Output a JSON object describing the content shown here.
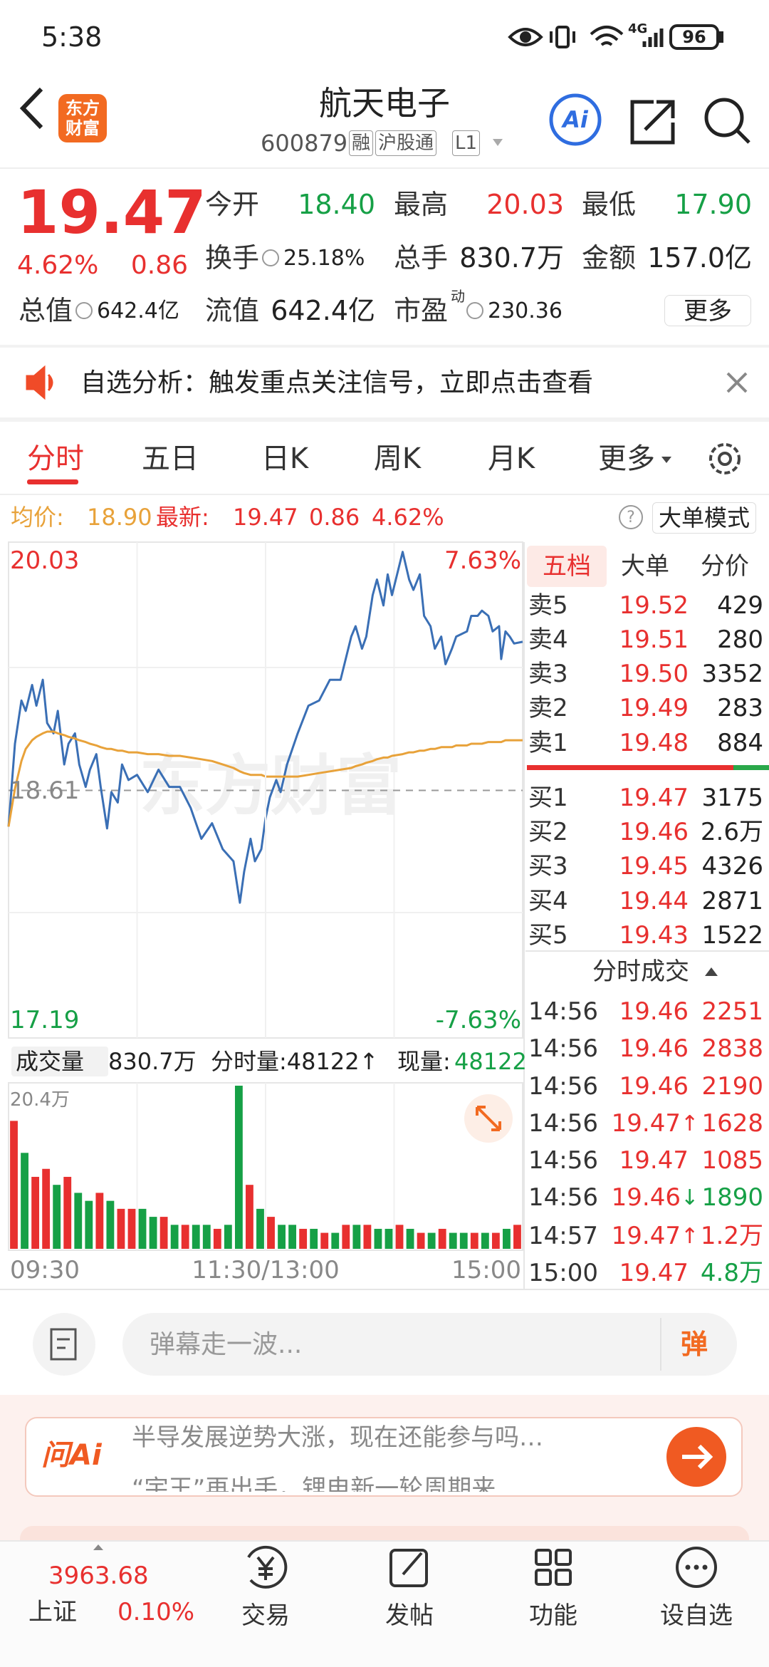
{
  "status_bar": {
    "time": "5:38",
    "network": "4G",
    "battery": "96"
  },
  "header": {
    "logo": [
      "东方",
      "财富"
    ],
    "title": "航天电子",
    "code": "600879",
    "tags": [
      "融",
      "沪股通",
      "L1"
    ],
    "ai": "Ai"
  },
  "quote": {
    "price": "19.47",
    "change_pct": "4.62%",
    "change": "0.86",
    "stats": [
      [
        {
          "label": "今开",
          "value": "18.40",
          "color": "#16a046"
        },
        {
          "label": "最高",
          "value": "20.03",
          "color": "#e8302f"
        },
        {
          "label": "最低",
          "value": "17.90",
          "color": "#16a046"
        }
      ],
      [
        {
          "label": "换手",
          "value": "25.18%",
          "icon": true
        },
        {
          "label": "总手",
          "value": "830.7万"
        },
        {
          "label": "金额",
          "value": "157.0亿"
        }
      ],
      [
        {
          "label": "总值",
          "value": "642.4亿",
          "icon": true
        },
        {
          "label": "流值",
          "value": "642.4亿"
        },
        {
          "label": "市盈",
          "sup": "动",
          "value": "230.36",
          "icon": true
        }
      ]
    ],
    "more": "更多"
  },
  "alert": {
    "text": "自选分析：触发重点关注信号，立即点击查看"
  },
  "tabs": {
    "items": [
      "分时",
      "五日",
      "日K",
      "周K",
      "月K",
      "更多"
    ],
    "active": 0
  },
  "info": {
    "avg_label": "均价:",
    "avg": "18.90",
    "last_label": "最新:",
    "last": "19.47",
    "change": "0.86",
    "change_pct": "4.62%",
    "help": "?",
    "mode": "大单模式"
  },
  "watermark": "东方财富",
  "volume_header": {
    "label": "成交量",
    "total": "830.7万",
    "period": "分时量:48122↑",
    "now_label": "现量:",
    "now": "48122"
  },
  "order_book": {
    "tabs": [
      "五档",
      "大单",
      "分价"
    ],
    "asks": [
      [
        "卖5",
        "19.52",
        "429"
      ],
      [
        "卖4",
        "19.51",
        "280"
      ],
      [
        "卖3",
        "19.50",
        "3352"
      ],
      [
        "卖2",
        "19.49",
        "283"
      ],
      [
        "卖1",
        "19.48",
        "884"
      ]
    ],
    "bids": [
      [
        "买1",
        "19.47",
        "3175"
      ],
      [
        "买2",
        "19.46",
        "2.6万"
      ],
      [
        "买3",
        "19.45",
        "4326"
      ],
      [
        "买4",
        "19.44",
        "2871"
      ],
      [
        "买5",
        "19.43",
        "1522"
      ]
    ]
  },
  "trades": {
    "title": "分时成交",
    "rows": [
      {
        "time": "14:56",
        "price": "19.46",
        "volume": "2251",
        "color": "#e8302f"
      },
      {
        "time": "14:56",
        "price": "19.46",
        "volume": "2838",
        "color": "#e8302f"
      },
      {
        "time": "14:56",
        "price": "19.46",
        "volume": "2190",
        "color": "#e8302f"
      },
      {
        "time": "14:56",
        "price": "19.47",
        "dir": "↑",
        "volume": "1628",
        "color": "#e8302f"
      },
      {
        "time": "14:56",
        "price": "19.47",
        "volume": "1085",
        "color": "#e8302f"
      },
      {
        "time": "14:56",
        "price": "19.46",
        "dir": "↓",
        "volume": "1890",
        "color": "#16a046"
      },
      {
        "time": "14:57",
        "price": "19.47",
        "dir": "↑",
        "volume": "1.2万",
        "color": "#e8302f"
      },
      {
        "time": "15:00",
        "price": "19.47",
        "volume": "4.8万",
        "color": "#16a046"
      }
    ]
  },
  "comment": {
    "placeholder": "弹幕走一波...",
    "button": "弹"
  },
  "ad": {
    "brand": "问Ai",
    "lines": [
      "半导发展逆势大涨，现在还能参与吗…",
      "“宇王”再出手，锂电新一轮周期来"
    ]
  },
  "bottom_nav": {
    "index": {
      "value": "3963.68",
      "name": "上证",
      "change": "0.10%"
    },
    "items": [
      "交易",
      "发帖",
      "功能",
      "设自选"
    ]
  },
  "chart_data": [
    {
      "type": "line",
      "x": [
        0,
        3,
        6,
        8,
        11,
        13,
        16,
        18,
        21,
        23,
        26,
        28,
        31,
        33,
        36,
        38,
        41,
        43,
        46,
        48,
        51,
        53,
        56,
        60,
        65,
        70,
        75,
        80,
        85,
        90,
        95,
        100,
        105,
        108,
        110,
        113,
        115,
        118,
        120,
        122,
        125,
        127,
        130,
        135,
        140,
        145,
        150,
        155,
        160,
        162,
        165,
        167,
        170,
        172,
        175,
        177,
        179,
        184,
        187,
        189,
        192,
        194,
        197,
        199,
        202,
        204,
        207,
        209,
        214,
        216,
        219,
        221,
        224,
        226,
        229,
        230,
        232,
        234,
        236,
        240
      ],
      "xlim": [
        0,
        240
      ],
      "ylim": [
        17.19,
        20.03
      ],
      "yticks": [
        20.03,
        18.61,
        17.19
      ],
      "y2lim": [
        -7.63,
        7.63
      ],
      "y2ticks": [
        {
          "value": 7.63,
          "label": "7.63%"
        },
        {
          "value": -7.63,
          "label": "-7.63%"
        }
      ],
      "series": [
        {
          "color": "#3a6fb5",
          "values": [
            18.4,
            18.88,
            19.13,
            19.07,
            19.22,
            19.1,
            19.25,
            19.0,
            18.94,
            19.07,
            18.76,
            18.88,
            18.94,
            18.76,
            18.63,
            18.73,
            18.82,
            18.63,
            18.39,
            18.6,
            18.54,
            18.76,
            18.67,
            18.7,
            18.6,
            18.73,
            18.63,
            18.63,
            18.51,
            18.33,
            18.42,
            18.27,
            18.2,
            17.96,
            18.14,
            18.33,
            18.2,
            18.27,
            18.45,
            18.57,
            18.67,
            18.6,
            18.76,
            18.94,
            19.1,
            19.13,
            19.25,
            19.25,
            19.5,
            19.56,
            19.43,
            19.5,
            19.74,
            19.83,
            19.68,
            19.86,
            19.74,
            19.99,
            19.83,
            19.77,
            19.86,
            19.62,
            19.56,
            19.43,
            19.5,
            19.34,
            19.43,
            19.5,
            19.53,
            19.62,
            19.62,
            19.65,
            19.62,
            19.53,
            19.56,
            19.37,
            19.53,
            19.5,
            19.46,
            19.47
          ]
        },
        {
          "color": "#e8a23a",
          "values": [
            18.4,
            18.62,
            18.78,
            18.85,
            18.9,
            18.92,
            18.94,
            18.95,
            18.95,
            18.94,
            18.93,
            18.92,
            18.91,
            18.9,
            18.89,
            18.88,
            18.87,
            18.86,
            18.85,
            18.85,
            18.84,
            18.84,
            18.83,
            18.83,
            18.82,
            18.82,
            18.81,
            18.81,
            18.8,
            18.79,
            18.78,
            18.76,
            18.74,
            18.72,
            18.71,
            18.7,
            18.7,
            18.7,
            18.69,
            18.69,
            18.69,
            18.69,
            18.69,
            18.69,
            18.7,
            18.71,
            18.72,
            18.73,
            18.74,
            18.75,
            18.76,
            18.77,
            18.78,
            18.79,
            18.8,
            18.8,
            18.81,
            18.82,
            18.83,
            18.83,
            18.84,
            18.84,
            18.85,
            18.85,
            18.86,
            18.86,
            18.86,
            18.87,
            18.87,
            18.88,
            18.88,
            18.88,
            18.89,
            18.89,
            18.89,
            18.89,
            18.9,
            18.9,
            18.9,
            18.9
          ]
        }
      ]
    },
    {
      "type": "bar",
      "x": [
        2.5,
        7.5,
        12.5,
        17.5,
        22.5,
        27.5,
        32.5,
        37.5,
        42.5,
        47.5,
        52.5,
        57.5,
        62.5,
        67.5,
        72.5,
        77.5,
        82.5,
        87.5,
        92.5,
        97.5,
        102.5,
        107.5,
        112.5,
        117.5,
        122.5,
        127.5,
        132.5,
        137.5,
        142.5,
        147.5,
        152.5,
        157.5,
        162.5,
        167.5,
        172.5,
        177.5,
        182.5,
        187.5,
        192.5,
        197.5,
        202.5,
        207.5,
        212.5,
        217.5,
        222.5,
        227.5,
        232.5,
        237.5
      ],
      "xlim": [
        0,
        240
      ],
      "xticks": [
        {
          "value": 0,
          "label": "09:30"
        },
        {
          "value": 120,
          "label": "11:30/13:00"
        },
        {
          "value": 240,
          "label": "15:00"
        }
      ],
      "ylim": [
        0,
        20.4
      ],
      "yticks": [
        {
          "value": 20.4,
          "label": "20.4万"
        }
      ],
      "series": [
        {
          "color": "#e8302f",
          "values": [
            16,
            null,
            9,
            10,
            null,
            9,
            null,
            null,
            7,
            null,
            5,
            5,
            null,
            null,
            4,
            null,
            3,
            null,
            null,
            2.5,
            null,
            null,
            8,
            null,
            4,
            null,
            null,
            2.5,
            null,
            2,
            null,
            3,
            null,
            3,
            null,
            null,
            3,
            null,
            2,
            null,
            2.5,
            null,
            null,
            2,
            null,
            2,
            null,
            3
          ]
        },
        {
          "color": "#16a046",
          "values": [
            null,
            12,
            null,
            null,
            8,
            null,
            7,
            6,
            null,
            6,
            null,
            null,
            5,
            4,
            null,
            3,
            null,
            3,
            3,
            null,
            3,
            20.4,
            null,
            5,
            null,
            3,
            3,
            null,
            2.5,
            null,
            2,
            null,
            3,
            null,
            2.5,
            2.5,
            null,
            2.5,
            null,
            2,
            null,
            2,
            2,
            null,
            2,
            null,
            2.5,
            null
          ]
        }
      ]
    }
  ]
}
